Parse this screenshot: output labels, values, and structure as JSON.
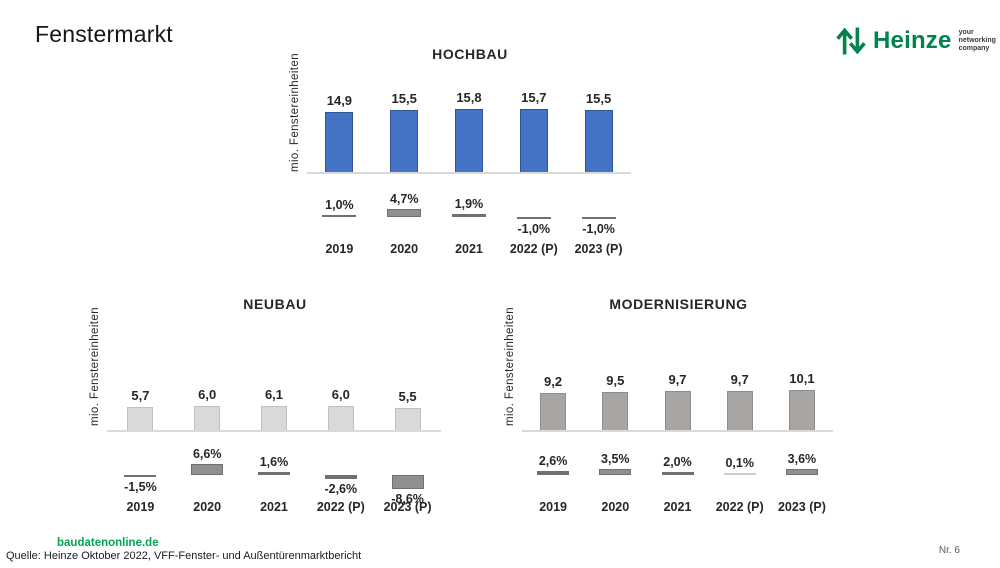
{
  "page": {
    "title": "Fenstermarkt",
    "page_number": "Nr. 6"
  },
  "logo": {
    "name": "Heinze",
    "tagline": [
      "your",
      "networking",
      "company"
    ],
    "green": "#00834D"
  },
  "footer": {
    "link": "baudatenonline.de",
    "source": "Quelle: Heinze Oktober 2022, VFF-Fenster- und Außentürenmarktbericht"
  },
  "colors": {
    "baseline": "#D9D9D9",
    "pct_bar_fill": "#8F8F8F",
    "pct_bar_border": "#707070",
    "text": "#262626"
  },
  "chart_data": [
    {
      "type": "bar",
      "title": "HOCHBAU",
      "ylabel": "mio. Fenstereinheiten",
      "categories": [
        "2019",
        "2020",
        "2021",
        "2022 (P)",
        "2023 (P)"
      ],
      "bar_fill": "#4472C4",
      "bar_border": "#2F5597",
      "series": [
        {
          "name": "units_mio",
          "values": [
            14.9,
            15.5,
            15.8,
            15.7,
            15.5
          ],
          "labels": [
            "14,9",
            "15,5",
            "15,8",
            "15,7",
            "15,5"
          ]
        },
        {
          "name": "pct_change",
          "values": [
            1.0,
            4.7,
            1.9,
            -1.0,
            -1.0
          ],
          "labels": [
            "1,0%",
            "4,7%",
            "1,9%",
            "-1,0%",
            "-1,0%"
          ]
        }
      ]
    },
    {
      "type": "bar",
      "title": "NEUBAU",
      "ylabel": "mio. Fenstereinheiten",
      "categories": [
        "2019",
        "2020",
        "2021",
        "2022 (P)",
        "2023 (P)"
      ],
      "bar_fill": "#D9D9D9",
      "bar_border": "#BFBFBF",
      "series": [
        {
          "name": "units_mio",
          "values": [
            5.7,
            6.0,
            6.1,
            6.0,
            5.5
          ],
          "labels": [
            "5,7",
            "6,0",
            "6,1",
            "6,0",
            "5,5"
          ]
        },
        {
          "name": "pct_change",
          "values": [
            -1.5,
            6.6,
            1.6,
            -2.6,
            -8.6
          ],
          "labels": [
            "-1,5%",
            "6,6%",
            "1,6%",
            "-2,6%",
            "-8,6%"
          ]
        }
      ]
    },
    {
      "type": "bar",
      "title": "MODERNISIERUNG",
      "ylabel": "mio. Fenstereinheiten",
      "categories": [
        "2019",
        "2020",
        "2021",
        "2022 (P)",
        "2023 (P)"
      ],
      "bar_fill": "#A9A5A3",
      "bar_border": "#8C8C8C",
      "series": [
        {
          "name": "units_mio",
          "values": [
            9.2,
            9.5,
            9.7,
            9.7,
            10.1
          ],
          "labels": [
            "9,2",
            "9,5",
            "9,7",
            "9,7",
            "10,1"
          ]
        },
        {
          "name": "pct_change",
          "values": [
            2.6,
            3.5,
            2.0,
            0.1,
            3.6
          ],
          "labels": [
            "2,6%",
            "3,5%",
            "2,0%",
            "0,1%",
            "3,6%"
          ]
        }
      ]
    }
  ]
}
